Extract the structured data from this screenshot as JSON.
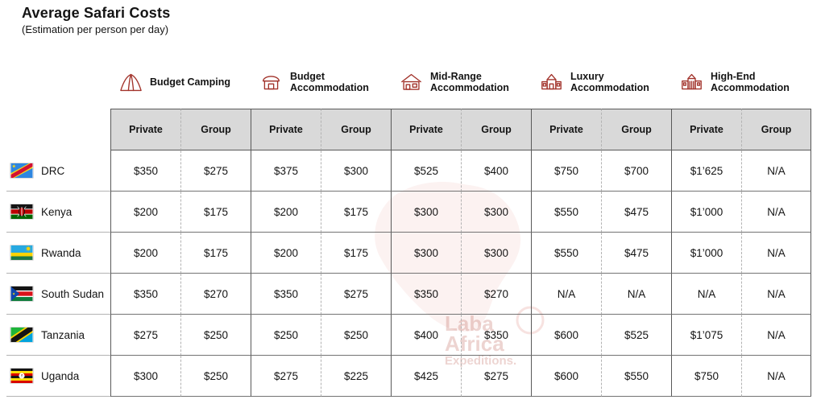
{
  "page": {
    "title": "Average Safari Costs",
    "subtitle": "(Estimation per person per day)"
  },
  "watermark": {
    "lines": [
      "Laba",
      "Africa",
      "Expeditions."
    ]
  },
  "colors": {
    "accent_red": "#a2332b",
    "header_bg": "#d9d9d9",
    "border_dark": "#595959"
  },
  "chart_data": {
    "type": "table",
    "title": "Average Safari Costs",
    "subtitle": "(Estimation per person per day)",
    "column_groups": [
      {
        "label": "Budget Camping",
        "icon": "tent-icon"
      },
      {
        "label": "Budget Accommodation",
        "icon": "hut-icon"
      },
      {
        "label": "Mid-Range Accommodation",
        "icon": "house-icon"
      },
      {
        "label": "Luxury Accommodation",
        "icon": "villa-icon"
      },
      {
        "label": "High-End Accommodation",
        "icon": "mansion-icon"
      }
    ],
    "sub_columns": [
      "Private",
      "Group"
    ],
    "rows": [
      {
        "country": "DRC",
        "flag_icon": "drc-flag-icon",
        "values": [
          "$350",
          "$275",
          "$375",
          "$300",
          "$525",
          "$400",
          "$750",
          "$700",
          "$1’625",
          "N/A"
        ]
      },
      {
        "country": "Kenya",
        "flag_icon": "kenya-flag-icon",
        "values": [
          "$200",
          "$175",
          "$200",
          "$175",
          "$300",
          "$300",
          "$550",
          "$475",
          "$1’000",
          "N/A"
        ]
      },
      {
        "country": "Rwanda",
        "flag_icon": "rwanda-flag-icon",
        "values": [
          "$200",
          "$175",
          "$200",
          "$175",
          "$300",
          "$300",
          "$550",
          "$475",
          "$1’000",
          "N/A"
        ]
      },
      {
        "country": "South Sudan",
        "flag_icon": "south-sudan-flag-icon",
        "values": [
          "$350",
          "$270",
          "$350",
          "$275",
          "$350",
          "$270",
          "N/A",
          "N/A",
          "N/A",
          "N/A"
        ]
      },
      {
        "country": "Tanzania",
        "flag_icon": "tanzania-flag-icon",
        "values": [
          "$275",
          "$250",
          "$250",
          "$250",
          "$400",
          "$350",
          "$600",
          "$525",
          "$1’075",
          "N/A"
        ]
      },
      {
        "country": "Uganda",
        "flag_icon": "uganda-flag-icon",
        "values": [
          "$300",
          "$250",
          "$275",
          "$225",
          "$425",
          "$275",
          "$600",
          "$550",
          "$750",
          "N/A"
        ]
      }
    ]
  }
}
